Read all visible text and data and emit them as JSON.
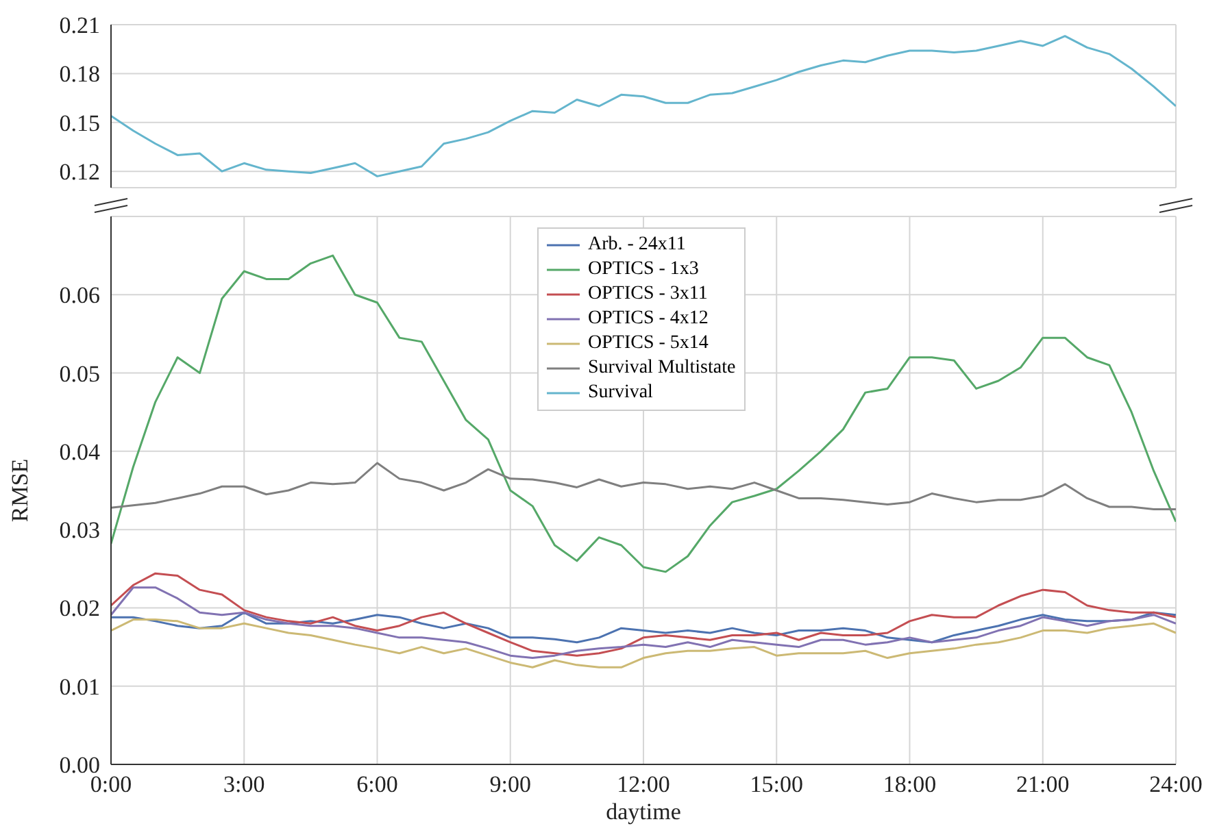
{
  "chart_data": [
    {
      "type": "line",
      "x": [
        0,
        0.5,
        1,
        1.5,
        2,
        2.5,
        3,
        3.5,
        4,
        4.5,
        5,
        5.5,
        6,
        6.5,
        7,
        7.5,
        8,
        8.5,
        9,
        9.5,
        10,
        10.5,
        11,
        11.5,
        12,
        12.5,
        13,
        13.5,
        14,
        14.5,
        15,
        15.5,
        16,
        16.5,
        17,
        17.5,
        18,
        18.5,
        19,
        19.5,
        20,
        20.5,
        21,
        21.5,
        22,
        22.5,
        23,
        23.5,
        24
      ],
      "series": [
        {
          "name": "Survival",
          "color": "#64b5cd",
          "values": [
            0.154,
            0.145,
            0.137,
            0.13,
            0.131,
            0.12,
            0.125,
            0.121,
            0.12,
            0.119,
            0.122,
            0.125,
            0.117,
            0.12,
            0.123,
            0.137,
            0.14,
            0.144,
            0.151,
            0.157,
            0.156,
            0.164,
            0.16,
            0.167,
            0.166,
            0.162,
            0.162,
            0.167,
            0.168,
            0.172,
            0.176,
            0.181,
            0.185,
            0.188,
            0.187,
            0.191,
            0.194,
            0.194,
            0.193,
            0.194,
            0.197,
            0.2,
            0.197,
            0.203,
            0.196,
            0.192,
            0.183,
            0.172,
            0.16
          ]
        }
      ],
      "xlim": [
        0,
        24
      ],
      "xticks": [
        {
          "value": 0,
          "label": null
        },
        {
          "value": 3,
          "label": null
        },
        {
          "value": 6,
          "label": null
        },
        {
          "value": 9,
          "label": null
        },
        {
          "value": 12,
          "label": null
        },
        {
          "value": 15,
          "label": null
        },
        {
          "value": 18,
          "label": null
        },
        {
          "value": 21,
          "label": null
        },
        {
          "value": 24,
          "label": null
        }
      ],
      "ylim": [
        0.11,
        0.21
      ],
      "yticks": [
        0.12,
        0.15,
        0.18,
        0.21
      ],
      "grid": true,
      "tick_labels": "y"
    },
    {
      "type": "line",
      "xlabel": "daytime",
      "ylabel": "RMSE",
      "x": [
        0,
        0.5,
        1,
        1.5,
        2,
        2.5,
        3,
        3.5,
        4,
        4.5,
        5,
        5.5,
        6,
        6.5,
        7,
        7.5,
        8,
        8.5,
        9,
        9.5,
        10,
        10.5,
        11,
        11.5,
        12,
        12.5,
        13,
        13.5,
        14,
        14.5,
        15,
        15.5,
        16,
        16.5,
        17,
        17.5,
        18,
        18.5,
        19,
        19.5,
        20,
        20.5,
        21,
        21.5,
        22,
        22.5,
        23,
        23.5,
        24
      ],
      "series": [
        {
          "name": "Arb. - 24x11",
          "color": "#4c72b0",
          "values": [
            0.0188,
            0.0188,
            0.0183,
            0.0177,
            0.0174,
            0.0177,
            0.0194,
            0.018,
            0.018,
            0.0183,
            0.018,
            0.0185,
            0.0191,
            0.0188,
            0.018,
            0.0174,
            0.018,
            0.0174,
            0.0162,
            0.0162,
            0.016,
            0.0156,
            0.0162,
            0.0174,
            0.0171,
            0.0168,
            0.0171,
            0.0168,
            0.0174,
            0.0168,
            0.0165,
            0.0171,
            0.0171,
            0.0174,
            0.0171,
            0.0162,
            0.0159,
            0.0156,
            0.0165,
            0.0171,
            0.0177,
            0.0185,
            0.0191,
            0.0185,
            0.0183,
            0.0183,
            0.0185,
            0.0194,
            0.0191
          ]
        },
        {
          "name": "OPTICS - 1x3",
          "color": "#55a868",
          "values": [
            0.0282,
            0.038,
            0.0463,
            0.052,
            0.05,
            0.0595,
            0.063,
            0.062,
            0.062,
            0.064,
            0.065,
            0.06,
            0.059,
            0.0545,
            0.054,
            0.049,
            0.044,
            0.0415,
            0.035,
            0.033,
            0.028,
            0.026,
            0.029,
            0.028,
            0.0252,
            0.0246,
            0.0266,
            0.0305,
            0.0335,
            0.0343,
            0.0352,
            0.0375,
            0.04,
            0.0428,
            0.0475,
            0.048,
            0.052,
            0.052,
            0.0516,
            0.048,
            0.049,
            0.0507,
            0.0545,
            0.0545,
            0.052,
            0.051,
            0.045,
            0.0375,
            0.031
          ]
        },
        {
          "name": "OPTICS - 3x11",
          "color": "#c44e52",
          "values": [
            0.0203,
            0.0229,
            0.0244,
            0.0241,
            0.0223,
            0.0217,
            0.0197,
            0.0188,
            0.0183,
            0.018,
            0.0188,
            0.0177,
            0.0171,
            0.0177,
            0.0188,
            0.0194,
            0.018,
            0.0168,
            0.0156,
            0.0145,
            0.0142,
            0.0139,
            0.0142,
            0.0148,
            0.0162,
            0.0165,
            0.0162,
            0.0159,
            0.0165,
            0.0165,
            0.0168,
            0.0159,
            0.0168,
            0.0165,
            0.0165,
            0.0168,
            0.0183,
            0.0191,
            0.0188,
            0.0188,
            0.0203,
            0.0215,
            0.0223,
            0.022,
            0.0203,
            0.0197,
            0.0194,
            0.0194,
            0.0188
          ]
        },
        {
          "name": "OPTICS - 4x12",
          "color": "#8172b2",
          "values": [
            0.0191,
            0.0226,
            0.0226,
            0.0212,
            0.0194,
            0.0191,
            0.0194,
            0.0185,
            0.018,
            0.0177,
            0.0177,
            0.0174,
            0.0168,
            0.0162,
            0.0162,
            0.0159,
            0.0156,
            0.0148,
            0.0139,
            0.0136,
            0.0139,
            0.0145,
            0.0148,
            0.015,
            0.0153,
            0.015,
            0.0156,
            0.015,
            0.0159,
            0.0156,
            0.0153,
            0.015,
            0.0159,
            0.0159,
            0.0153,
            0.0156,
            0.0162,
            0.0156,
            0.0159,
            0.0162,
            0.0171,
            0.0177,
            0.0188,
            0.0183,
            0.0177,
            0.0183,
            0.0185,
            0.0191,
            0.018
          ]
        },
        {
          "name": "OPTICS - 5x14",
          "color": "#ccb974",
          "values": [
            0.0171,
            0.0185,
            0.0185,
            0.0183,
            0.0174,
            0.0174,
            0.018,
            0.0174,
            0.0168,
            0.0165,
            0.0159,
            0.0153,
            0.0148,
            0.0142,
            0.015,
            0.0142,
            0.0148,
            0.0139,
            0.013,
            0.0124,
            0.0133,
            0.0127,
            0.0124,
            0.0124,
            0.0136,
            0.0142,
            0.0145,
            0.0145,
            0.0148,
            0.015,
            0.0139,
            0.0142,
            0.0142,
            0.0142,
            0.0145,
            0.0136,
            0.0142,
            0.0145,
            0.0148,
            0.0153,
            0.0156,
            0.0162,
            0.0171,
            0.0171,
            0.0168,
            0.0174,
            0.0177,
            0.018,
            0.0168
          ]
        },
        {
          "name": "Survival Multistate",
          "color": "#7f7f7f",
          "values": [
            0.0328,
            0.0331,
            0.0334,
            0.034,
            0.0346,
            0.0355,
            0.0355,
            0.0345,
            0.035,
            0.036,
            0.0358,
            0.036,
            0.0385,
            0.0365,
            0.036,
            0.035,
            0.036,
            0.0377,
            0.0365,
            0.0364,
            0.036,
            0.0354,
            0.0364,
            0.0355,
            0.036,
            0.0358,
            0.0352,
            0.0355,
            0.0352,
            0.036,
            0.035,
            0.034,
            0.034,
            0.0338,
            0.0335,
            0.0332,
            0.0335,
            0.0346,
            0.034,
            0.0335,
            0.0338,
            0.0338,
            0.0343,
            0.0358,
            0.034,
            0.0329,
            0.0329,
            0.0326,
            0.0326
          ]
        }
      ],
      "xlim": [
        0,
        24
      ],
      "xticks": [
        {
          "value": 0,
          "label": "0:00"
        },
        {
          "value": 3,
          "label": "3:00"
        },
        {
          "value": 6,
          "label": "6:00"
        },
        {
          "value": 9,
          "label": "9:00"
        },
        {
          "value": 12,
          "label": "12:00"
        },
        {
          "value": 15,
          "label": "15:00"
        },
        {
          "value": 18,
          "label": "18:00"
        },
        {
          "value": 21,
          "label": "21:00"
        },
        {
          "value": 24,
          "label": "24:00"
        }
      ],
      "ylim": [
        0,
        0.07
      ],
      "yticks": [
        {
          "value": 0,
          "label": "0.00"
        },
        0.01,
        0.02,
        0.03,
        0.04,
        0.05,
        0.06
      ],
      "grid": true,
      "legend": "top"
    }
  ]
}
